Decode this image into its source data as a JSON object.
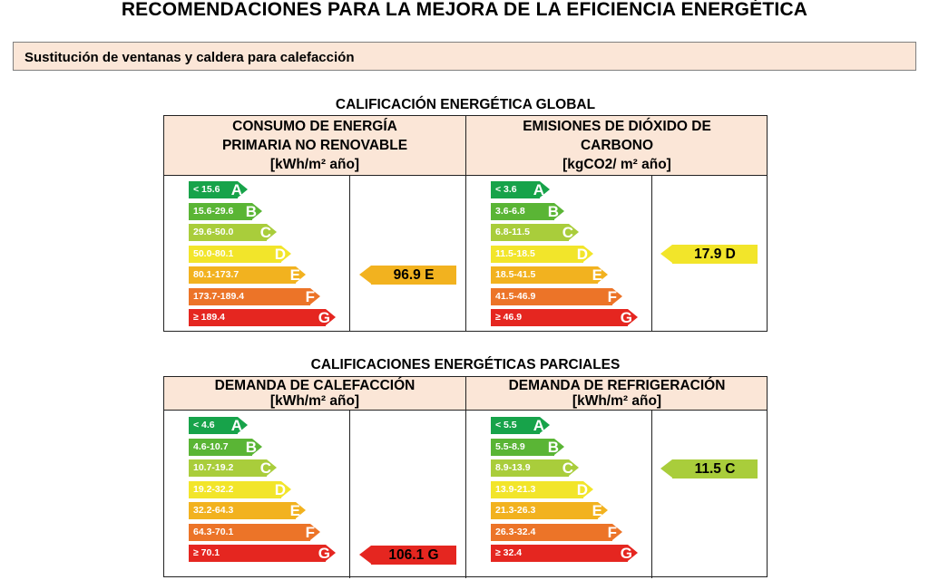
{
  "title": "RECOMENDACIONES PARA LA MEJORA DE LA EFICIENCIA ENERGÉTICA",
  "measure": "Sustitución de ventanas y caldera para calefacción",
  "colors": {
    "A": "#17a34a",
    "B": "#5ab535",
    "C": "#a9cd3b",
    "D": "#f2e52a",
    "E": "#f2b21f",
    "F": "#ec7428",
    "G": "#e52620",
    "header_bg": "#fbe6d7"
  },
  "global": {
    "title": "CALIFICACIÓN ENERGÉTICA GLOBAL",
    "left": {
      "header": [
        "CONSUMO DE ENERGÍA",
        "PRIMARIA NO RENOVABLE",
        "[kWh/m² año]"
      ],
      "scale": [
        "< 15.6",
        "15.6-29.6",
        "29.6-50.0",
        "50.0-80.1",
        "80.1-173.7",
        "173.7-189.4",
        "≥ 189.4"
      ],
      "rating": {
        "value": "96.9 E",
        "class": "E"
      }
    },
    "right": {
      "header": [
        "EMISIONES DE DIÓXIDO DE",
        "CARBONO",
        "[kgCO2/ m² año]"
      ],
      "scale": [
        "< 3.6",
        "3.6-6.8",
        "6.8-11.5",
        "11.5-18.5",
        "18.5-41.5",
        "41.5-46.9",
        "≥ 46.9"
      ],
      "rating": {
        "value": "17.9 D",
        "class": "D"
      }
    }
  },
  "partial": {
    "title": "CALIFICACIONES ENERGÉTICAS PARCIALES",
    "left": {
      "header": [
        "DEMANDA DE CALEFACCIÓN",
        "[kWh/m² año]"
      ],
      "scale": [
        "< 4.6",
        "4.6-10.7",
        "10.7-19.2",
        "19.2-32.2",
        "32.2-64.3",
        "64.3-70.1",
        "≥ 70.1"
      ],
      "rating": {
        "value": "106.1 G",
        "class": "G"
      }
    },
    "right": {
      "header": [
        "DEMANDA DE REFRIGERACIÓN",
        "[kWh/m² año]"
      ],
      "scale": [
        "< 5.5",
        "5.5-8.9",
        "8.9-13.9",
        "13.9-21.3",
        "21.3-26.3",
        "26.3-32.4",
        "≥ 32.4"
      ],
      "rating": {
        "value": "11.5 C",
        "class": "C"
      }
    }
  },
  "letters": [
    "A",
    "B",
    "C",
    "D",
    "E",
    "F",
    "G"
  ]
}
